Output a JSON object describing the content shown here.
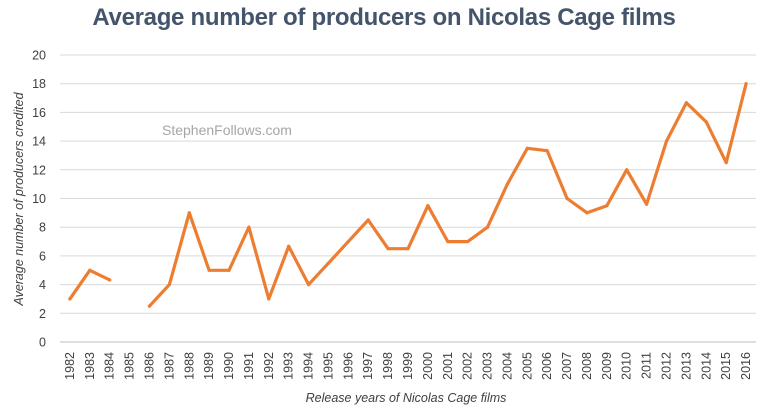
{
  "chart_data": {
    "type": "line",
    "title": "Average number of producers on Nicolas Cage films",
    "xlabel": "Release years of Nicolas Cage films",
    "ylabel": "Average number of producers credited",
    "watermark": "StephenFollows.com",
    "ylim": [
      0,
      20
    ],
    "y_ticks": [
      0,
      2,
      4,
      6,
      8,
      10,
      12,
      14,
      16,
      18,
      20
    ],
    "grid": true,
    "line_color": "#ed7d31",
    "categories": [
      "1982",
      "1983",
      "1984",
      "1985",
      "1986",
      "1987",
      "1988",
      "1989",
      "1990",
      "1991",
      "1992",
      "1993",
      "1994",
      "1995",
      "1996",
      "1997",
      "1998",
      "1999",
      "2000",
      "2001",
      "2002",
      "2003",
      "2004",
      "2005",
      "2006",
      "2007",
      "2008",
      "2009",
      "2010",
      "2011",
      "2012",
      "2013",
      "2014",
      "2015",
      "2016"
    ],
    "series": [
      {
        "values": [
          3,
          5,
          4.33,
          null,
          2.5,
          4,
          9,
          5,
          5,
          8,
          3,
          6.67,
          4,
          5.5,
          7,
          8.5,
          6.5,
          6.5,
          9.5,
          7,
          7,
          8,
          11,
          13.5,
          13.33,
          10,
          9,
          9.5,
          12,
          9.6,
          14,
          16.67,
          15.33,
          12.5,
          18
        ]
      }
    ]
  }
}
